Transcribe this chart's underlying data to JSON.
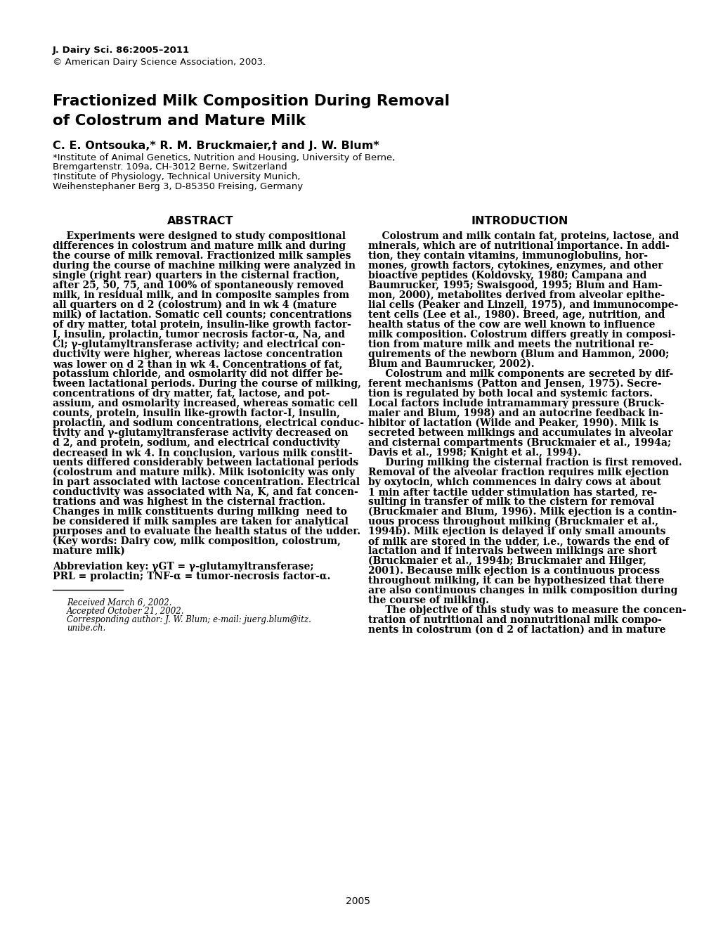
{
  "journal_line1": "J. Dairy Sci. 86:2005–2011",
  "journal_line2": "© American Dairy Science Association, 2003.",
  "title_line1": "Fractionized Milk Composition During Removal",
  "title_line2": "of Colostrum and Mature Milk",
  "authors": "C. E. Ontsouka,* R. M. Bruckmaier,† and J. W. Blum*",
  "affiliation1": "*Institute of Animal Genetics, Nutrition and Housing, University of Berne,",
  "affiliation2": "Bremgartenstr. 109a, CH-3012 Berne, Switzerland",
  "affiliation3": "†Institute of Physiology, Technical University Munich,",
  "affiliation4": "Weihenstephaner Berg 3, D-85350 Freising, Germany",
  "abstract_title": "ABSTRACT",
  "intro_title": "INTRODUCTION",
  "footnote1": "Received March 6, 2002.",
  "footnote2": "Accepted October 21, 2002.",
  "footnote3": "Corresponding author: J. W. Blum; e-mail: juerg.blum@itz.",
  "footnote4": "unibe.ch.",
  "page_number": "2005",
  "bg_color": "#ffffff",
  "text_color": "#000000",
  "abs_lines": [
    "    Experiments were designed to study compositional",
    "differences in colostrum and mature milk and during",
    "the course of milk removal. Fractionized milk samples",
    "during the course of machine milking were analyzed in",
    "single (right rear) quarters in the cisternal fraction,",
    "after 25, 50, 75, and 100% of spontaneously removed",
    "milk, in residual milk, and in composite samples from",
    "all quarters on d 2 (colostrum) and in wk 4 (mature",
    "milk) of lactation. Somatic cell counts; concentrations",
    "of dry matter, total protein, insulin-like growth factor-",
    "I, insulin, prolactin, tumor necrosis factor-α, Na, and",
    "Cl; γ-glutamyltransferase activity; and electrical con-",
    "ductivity were higher, whereas lactose concentration",
    "was lower on d 2 than in wk 4. Concentrations of fat,",
    "potassium chloride, and osmolarity did not differ be-",
    "tween lactational periods. During the course of milking,",
    "concentrations of dry matter, fat, lactose, and pot-",
    "assium, and osmolarity increased, whereas somatic cell",
    "counts, protein, insulin like-growth factor-I, insulin,",
    "prolactin, and sodium concentrations, electrical conduc-",
    "tivity and γ-glutamyltransferase activity decreased on",
    "d 2, and protein, sodium, and electrical conductivity",
    "decreased in wk 4. In conclusion, various milk constit-",
    "uents differed considerably between lactational periods",
    "(colostrum and mature milk). Milk isotonicity was only",
    "in part associated with lactose concentration. Electrical",
    "conductivity was associated with Na, K, and fat concen-",
    "trations and was highest in the cisternal fraction.",
    "Changes in milk constituents during milking  need to",
    "be considered if milk samples are taken for analytical",
    "purposes and to evaluate the health status of the udder.",
    "(Key words: Dairy cow, milk composition, colostrum,",
    "mature milk)"
  ],
  "abbrev_lines": [
    "Abbreviation key: γGT = γ-glutamyltransferase;",
    "PRL = prolactin; TNF-α = tumor-necrosis factor-α."
  ],
  "intro_lines": [
    "    Colostrum and milk contain fat, proteins, lactose, and",
    "minerals, which are of nutritional importance. In addi-",
    "tion, they contain vitamins, immunoglobulins, hor-",
    "mones, growth factors, cytokines, enzymes, and other",
    "bioactive peptides (Koldovsky, 1980; Campana and",
    "Baumrucker, 1995; Swaisgood, 1995; Blum and Ham-",
    "mon, 2000), metabolites derived from alveolar epithe-",
    "lial cells (Peaker and Linzell, 1975), and immunocompe-",
    "tent cells (Lee et al., 1980). Breed, age, nutrition, and",
    "health status of the cow are well known to influence",
    "milk composition. Colostrum differs greatly in composi-",
    "tion from mature milk and meets the nutritional re-",
    "quirements of the newborn (Blum and Hammon, 2000;",
    "Blum and Baumrucker, 2002).",
    "     Colostrum and milk components are secreted by dif-",
    "ferent mechanisms (Patton and Jensen, 1975). Secre-",
    "tion is regulated by both local and systemic factors.",
    "Local factors include intramammary pressure (Bruck-",
    "maier and Blum, 1998) and an autocrine feedback in-",
    "hibitor of lactation (Wilde and Peaker, 1990). Milk is",
    "secreted between milkings and accumulates in alveolar",
    "and cisternal compartments (Bruckmaier et al., 1994a;",
    "Davis et al., 1998; Knight et al., 1994).",
    "     During milking the cisternal fraction is first removed.",
    "Removal of the alveolar fraction requires milk ejection",
    "by oxytocin, which commences in dairy cows at about",
    "1 min after tactile udder stimulation has started, re-",
    "sulting in transfer of milk to the cistern for removal",
    "(Bruckmaier and Blum, 1996). Milk ejection is a contin-",
    "uous process throughout milking (Bruckmaier et al.,",
    "1994b). Milk ejection is delayed if only small amounts",
    "of milk are stored in the udder, i.e., towards the end of",
    "lactation and if intervals between milkings are short",
    "(Bruckmaier et al., 1994b; Bruckmaier and Hilger,",
    "2001). Because milk ejection is a continuous process",
    "throughout milking, it can be hypothesized that there",
    "are also continuous changes in milk composition during",
    "the course of milking.",
    "     The objective of this study was to measure the concen-",
    "tration of nutritional and nonnutritional milk compo-",
    "nents in colostrum (on d 2 of lactation) and in mature"
  ]
}
